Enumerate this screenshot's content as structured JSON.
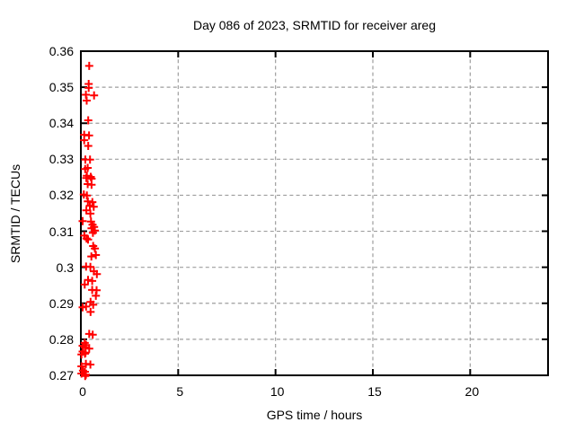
{
  "chart_data": {
    "type": "scatter",
    "title": "Day 086 of 2023, SRMTID for receiver areg",
    "xlabel": "GPS time / hours",
    "ylabel": "SRMTID / TECUs",
    "xlim": [
      0,
      24
    ],
    "ylim": [
      0.27,
      0.36
    ],
    "xticks": {
      "values": [
        0,
        5,
        10,
        15,
        20
      ],
      "labels": [
        "0",
        "5",
        "10",
        "15",
        "20"
      ]
    },
    "yticks": {
      "values": [
        0.27,
        0.28,
        0.29,
        0.3,
        0.31,
        0.32,
        0.33,
        0.34,
        0.35,
        0.36
      ],
      "labels": [
        "0.27",
        "0.28",
        "0.29",
        "0.3",
        "0.31",
        "0.32",
        "0.33",
        "0.34",
        "0.35",
        "0.36"
      ]
    },
    "grid": true,
    "legend": "none",
    "series": [
      {
        "name": "SRMTID",
        "marker": "plus",
        "color": "#ff0000",
        "points": [
          [
            0.43,
            0.3559
          ],
          [
            0.4,
            0.3509
          ],
          [
            0.4,
            0.3498
          ],
          [
            0.26,
            0.3479
          ],
          [
            0.68,
            0.3477
          ],
          [
            0.3,
            0.3463
          ],
          [
            0.38,
            0.3408
          ],
          [
            0.17,
            0.3368
          ],
          [
            0.42,
            0.3366
          ],
          [
            0.17,
            0.3353
          ],
          [
            0.38,
            0.3337
          ],
          [
            0.23,
            0.3299
          ],
          [
            0.47,
            0.3299
          ],
          [
            0.22,
            0.3273
          ],
          [
            0.35,
            0.3276
          ],
          [
            0.31,
            0.3254
          ],
          [
            0.51,
            0.3251
          ],
          [
            0.28,
            0.3248
          ],
          [
            0.55,
            0.3246
          ],
          [
            0.35,
            0.3231
          ],
          [
            0.55,
            0.3229
          ],
          [
            0.15,
            0.3202
          ],
          [
            0.31,
            0.3199
          ],
          [
            0.36,
            0.3183
          ],
          [
            0.59,
            0.3181
          ],
          [
            0.46,
            0.3171
          ],
          [
            0.66,
            0.3168
          ],
          [
            0.28,
            0.3158
          ],
          [
            0.49,
            0.3149
          ],
          [
            0.09,
            0.3128
          ],
          [
            0.52,
            0.3127
          ],
          [
            0.6,
            0.3118
          ],
          [
            0.68,
            0.3112
          ],
          [
            0.55,
            0.3108
          ],
          [
            0.72,
            0.3102
          ],
          [
            0.62,
            0.3096
          ],
          [
            0.18,
            0.3088
          ],
          [
            0.29,
            0.308
          ],
          [
            0.37,
            0.3077
          ],
          [
            0.63,
            0.3059
          ],
          [
            0.72,
            0.3052
          ],
          [
            0.54,
            0.303
          ],
          [
            0.77,
            0.3034
          ],
          [
            0.27,
            0.3002
          ],
          [
            0.49,
            0.3001
          ],
          [
            0.67,
            0.2989
          ],
          [
            0.82,
            0.2981
          ],
          [
            0.37,
            0.2965
          ],
          [
            0.58,
            0.2962
          ],
          [
            0.2,
            0.2952
          ],
          [
            0.58,
            0.2937
          ],
          [
            0.81,
            0.2936
          ],
          [
            0.77,
            0.2921
          ],
          [
            0.5,
            0.2904
          ],
          [
            0.63,
            0.2896
          ],
          [
            0.09,
            0.2889
          ],
          [
            0.27,
            0.2891
          ],
          [
            0.5,
            0.2876
          ],
          [
            0.43,
            0.2815
          ],
          [
            0.61,
            0.2813
          ],
          [
            0.2,
            0.279
          ],
          [
            0.27,
            0.2784
          ],
          [
            0.09,
            0.2782
          ],
          [
            0.2,
            0.2778
          ],
          [
            0.43,
            0.2774
          ],
          [
            0.09,
            0.2766
          ],
          [
            0.24,
            0.2763
          ],
          [
            0.03,
            0.2758
          ],
          [
            0.21,
            0.276
          ],
          [
            0.26,
            0.2732
          ],
          [
            0.49,
            0.273
          ],
          [
            0.03,
            0.2725
          ],
          [
            0.11,
            0.2713
          ],
          [
            0.21,
            0.271
          ],
          [
            0.03,
            0.2705
          ],
          [
            0.26,
            0.2702
          ],
          [
            0.22,
            0.2698
          ]
        ]
      }
    ]
  },
  "colors": {
    "background": "#ffffff",
    "frame": "#000000",
    "grid": "#9e9e9e",
    "marker": "#ff0000"
  }
}
